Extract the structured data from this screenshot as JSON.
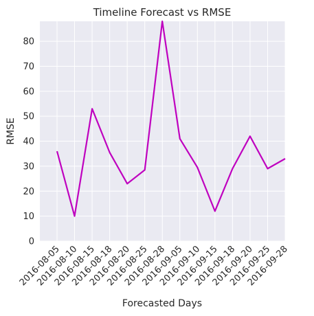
{
  "chart_data": {
    "type": "line",
    "title": "Timeline Forecast vs RMSE",
    "xlabel": "Forecasted Days",
    "ylabel": "RMSE",
    "ylim": [
      0,
      88
    ],
    "yticks": [
      0,
      10,
      20,
      30,
      40,
      50,
      60,
      70,
      80
    ],
    "grid": true,
    "legend": "none",
    "categories": [
      "2016-08-05",
      "2016-08-10",
      "2016-08-15",
      "2016-08-18",
      "2016-08-20",
      "2016-08-25",
      "2016-08-28",
      "2016-09-05",
      "2016-09-10",
      "2016-09-15",
      "2016-09-18",
      "2016-09-20",
      "2016-09-25",
      "2016-09-28"
    ],
    "series": [
      {
        "color": "#bf00bf",
        "values": [
          36,
          10,
          53,
          35.5,
          23,
          28.5,
          88,
          41,
          29.5,
          12,
          29,
          42,
          29,
          33
        ]
      }
    ],
    "colors": {
      "background": "#eaeaf2",
      "grid": "#ffffff",
      "line": "#bf00bf"
    }
  }
}
